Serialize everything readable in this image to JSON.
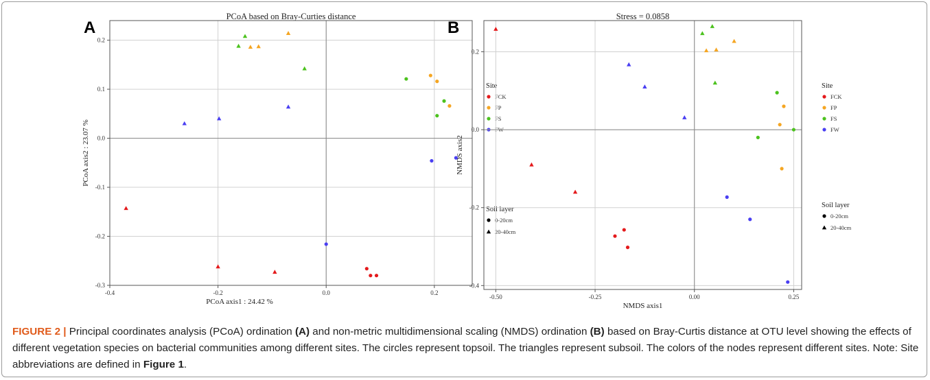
{
  "figure": {
    "caption_label": "FIGURE 2 |",
    "caption_parts": [
      {
        "t": "Principal coordinates analysis (PCoA) ordination ",
        "b": false
      },
      {
        "t": "(A)",
        "b": true
      },
      {
        "t": " and non-metric multidimensional scaling (NMDS) ordination ",
        "b": false
      },
      {
        "t": "(B)",
        "b": true
      },
      {
        "t": " based on Bray-Curtis distance at OTU level showing the effects of different vegetation species on bacterial communities among different sites. The circles represent topsoil. The triangles represent subsoil. The colors of the nodes represent different sites. Note: Site abbreviations are defined in ",
        "b": false
      },
      {
        "t": "Figure 1",
        "b": true
      },
      {
        "t": ".",
        "b": false
      }
    ]
  },
  "colors": {
    "FCK": "#e41a1c",
    "FP": "#f5a623",
    "FS": "#4cc21e",
    "FW": "#4a3ff2"
  },
  "chart_data": [
    {
      "type": "scatter",
      "panel": "A",
      "title": "PCoA based on Bray-Curties distance",
      "xlabel": "PCoA axis1 : 24.42 %",
      "ylabel": "PCoA axis2 : 23.07 %",
      "xlim": [
        -0.4,
        0.27
      ],
      "ylim": [
        -0.3,
        0.24
      ],
      "xticks": [
        -0.4,
        -0.2,
        0.0,
        0.2
      ],
      "xtick_labels": [
        "-0.4",
        "-0.2",
        "0.0",
        "0.2"
      ],
      "yticks": [
        -0.3,
        -0.2,
        -0.1,
        0.0,
        0.1,
        0.2
      ],
      "ytick_labels": [
        "-0.3",
        "-0.2",
        "-0.1",
        "0.0",
        "0.1",
        "0.2"
      ],
      "grid": true,
      "legend_site_title": "Site",
      "legend_site": [
        "FCK",
        "FP",
        "FS",
        "FW"
      ],
      "legend_layer_title": "Soil layer",
      "legend_layer": [
        "0-20cm",
        "20-40cm"
      ],
      "series": [
        {
          "name": "FCK",
          "points": [
            {
              "x": -0.37,
              "y": -0.143,
              "s": "tri"
            },
            {
              "x": -0.2,
              "y": -0.262,
              "s": "tri"
            },
            {
              "x": -0.095,
              "y": -0.273,
              "s": "tri"
            },
            {
              "x": 0.075,
              "y": -0.266,
              "s": "dot"
            },
            {
              "x": 0.082,
              "y": -0.28,
              "s": "dot"
            },
            {
              "x": 0.093,
              "y": -0.28,
              "s": "dot"
            }
          ]
        },
        {
          "name": "FP",
          "points": [
            {
              "x": -0.14,
              "y": 0.186,
              "s": "tri"
            },
            {
              "x": -0.125,
              "y": 0.187,
              "s": "tri"
            },
            {
              "x": -0.07,
              "y": 0.214,
              "s": "tri"
            },
            {
              "x": 0.193,
              "y": 0.128,
              "s": "dot"
            },
            {
              "x": 0.205,
              "y": 0.116,
              "s": "dot"
            },
            {
              "x": 0.228,
              "y": 0.066,
              "s": "dot"
            }
          ]
        },
        {
          "name": "FS",
          "points": [
            {
              "x": -0.162,
              "y": 0.188,
              "s": "tri"
            },
            {
              "x": -0.15,
              "y": 0.208,
              "s": "tri"
            },
            {
              "x": -0.04,
              "y": 0.142,
              "s": "tri"
            },
            {
              "x": 0.148,
              "y": 0.121,
              "s": "dot"
            },
            {
              "x": 0.218,
              "y": 0.076,
              "s": "dot"
            },
            {
              "x": 0.205,
              "y": 0.046,
              "s": "dot"
            }
          ]
        },
        {
          "name": "FW",
          "points": [
            {
              "x": -0.262,
              "y": 0.03,
              "s": "tri"
            },
            {
              "x": -0.198,
              "y": 0.04,
              "s": "tri"
            },
            {
              "x": -0.07,
              "y": 0.064,
              "s": "tri"
            },
            {
              "x": 0.0,
              "y": -0.216,
              "s": "dot"
            },
            {
              "x": 0.195,
              "y": -0.046,
              "s": "dot"
            },
            {
              "x": 0.24,
              "y": -0.04,
              "s": "dot"
            }
          ]
        }
      ]
    },
    {
      "type": "scatter",
      "panel": "B",
      "title": "Stress = 0.0858",
      "xlabel": "NMDS axis1",
      "ylabel": "NMDS axis2",
      "xlim": [
        -0.53,
        0.27
      ],
      "ylim": [
        -0.41,
        0.28
      ],
      "xticks": [
        -0.5,
        -0.25,
        0.0,
        0.25
      ],
      "xtick_labels": [
        "-0.50",
        "-0.25",
        "0.00",
        "0.25"
      ],
      "yticks": [
        -0.4,
        -0.2,
        0.0,
        0.2
      ],
      "ytick_labels": [
        "-0.4",
        "-0.2",
        "0.0",
        "0.2"
      ],
      "grid": true,
      "legend_site_title": "Site",
      "legend_site": [
        "FCK",
        "FP",
        "FS",
        "FW"
      ],
      "legend_layer_title": "Soil layer",
      "legend_layer": [
        "0-20cm",
        "20-40cm"
      ],
      "series": [
        {
          "name": "FCK",
          "points": [
            {
              "x": -0.5,
              "y": 0.258,
              "s": "tri"
            },
            {
              "x": -0.41,
              "y": -0.09,
              "s": "tri"
            },
            {
              "x": -0.3,
              "y": -0.16,
              "s": "tri"
            },
            {
              "x": -0.2,
              "y": -0.273,
              "s": "dot"
            },
            {
              "x": -0.177,
              "y": -0.257,
              "s": "dot"
            },
            {
              "x": -0.168,
              "y": -0.302,
              "s": "dot"
            }
          ]
        },
        {
          "name": "FP",
          "points": [
            {
              "x": 0.03,
              "y": 0.203,
              "s": "tri"
            },
            {
              "x": 0.055,
              "y": 0.205,
              "s": "tri"
            },
            {
              "x": 0.1,
              "y": 0.227,
              "s": "tri"
            },
            {
              "x": 0.225,
              "y": 0.06,
              "s": "dot"
            },
            {
              "x": 0.215,
              "y": 0.013,
              "s": "dot"
            },
            {
              "x": 0.22,
              "y": -0.1,
              "s": "dot"
            }
          ]
        },
        {
          "name": "FS",
          "points": [
            {
              "x": 0.02,
              "y": 0.247,
              "s": "tri"
            },
            {
              "x": 0.045,
              "y": 0.265,
              "s": "tri"
            },
            {
              "x": 0.052,
              "y": 0.12,
              "s": "tri"
            },
            {
              "x": 0.208,
              "y": 0.095,
              "s": "dot"
            },
            {
              "x": 0.16,
              "y": -0.02,
              "s": "dot"
            },
            {
              "x": 0.25,
              "y": 0.0,
              "s": "dot"
            }
          ]
        },
        {
          "name": "FW",
          "points": [
            {
              "x": -0.165,
              "y": 0.167,
              "s": "tri"
            },
            {
              "x": -0.125,
              "y": 0.11,
              "s": "tri"
            },
            {
              "x": -0.025,
              "y": 0.031,
              "s": "tri"
            },
            {
              "x": 0.082,
              "y": -0.173,
              "s": "dot"
            },
            {
              "x": 0.14,
              "y": -0.23,
              "s": "dot"
            },
            {
              "x": 0.235,
              "y": -0.391,
              "s": "dot"
            }
          ]
        }
      ]
    }
  ]
}
